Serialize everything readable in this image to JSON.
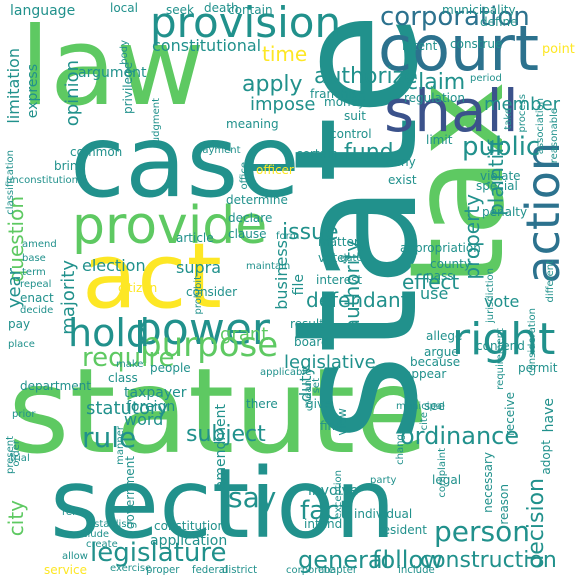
{
  "palette": [
    "#440154",
    "#3b528b",
    "#21918c",
    "#5ec962",
    "#fde725"
  ],
  "words": [
    {
      "text": "statute",
      "color": "#5ec962"
    },
    {
      "text": "section",
      "color": "#21918c"
    },
    {
      "text": "state",
      "color": "#21918c"
    },
    {
      "text": "law",
      "color": "#5ec962"
    },
    {
      "text": "case",
      "color": "#21918c"
    },
    {
      "text": "tax",
      "color": "#5ec962"
    },
    {
      "text": "act",
      "color": "#fde725"
    },
    {
      "text": "court",
      "color": "#2c728e"
    },
    {
      "text": "shall",
      "color": "#3b528b"
    },
    {
      "text": "provision",
      "color": "#21918c"
    },
    {
      "text": "provide",
      "color": "#5ec962"
    },
    {
      "text": "power",
      "color": "#21918c"
    },
    {
      "text": "right",
      "color": "#21918c"
    },
    {
      "text": "action",
      "color": "#2c728e"
    },
    {
      "text": "purpose",
      "color": "#5ec962"
    },
    {
      "text": "hold",
      "color": "#21918c"
    },
    {
      "text": "corporation",
      "color": "#2c728e"
    },
    {
      "text": "public",
      "color": "#21918c"
    },
    {
      "text": "legislature",
      "color": "#21918c"
    },
    {
      "text": "ordinance",
      "color": "#21918c"
    },
    {
      "text": "person",
      "color": "#21918c"
    },
    {
      "text": "general",
      "color": "#21918c"
    },
    {
      "text": "construction",
      "color": "#21918c"
    },
    {
      "text": "rule",
      "color": "#21918c"
    },
    {
      "text": "subject",
      "color": "#21918c"
    },
    {
      "text": "say",
      "color": "#21918c"
    },
    {
      "text": "fact",
      "color": "#21918c"
    },
    {
      "text": "follow",
      "color": "#21918c"
    },
    {
      "text": "require",
      "color": "#5ec962"
    },
    {
      "text": "apply",
      "color": "#21918c"
    },
    {
      "text": "claim",
      "color": "#21918c"
    },
    {
      "text": "member",
      "color": "#21918c"
    },
    {
      "text": "impose",
      "color": "#21918c"
    },
    {
      "text": "authorize",
      "color": "#21918c"
    },
    {
      "text": "time",
      "color": "#fde725"
    },
    {
      "text": "constitutional",
      "color": "#21918c"
    },
    {
      "text": "language",
      "color": "#21918c"
    },
    {
      "text": "opinion",
      "color": "#21918c"
    },
    {
      "text": "fund",
      "color": "#21918c"
    },
    {
      "text": "issue",
      "color": "#21918c"
    },
    {
      "text": "question",
      "color": "#5ec962"
    },
    {
      "text": "plaintiff",
      "color": "#21918c"
    },
    {
      "text": "property",
      "color": "#21918c"
    },
    {
      "text": "authority",
      "color": "#21918c"
    },
    {
      "text": "majority",
      "color": "#21918c"
    },
    {
      "text": "year",
      "color": "#21918c"
    },
    {
      "text": "effect",
      "color": "#21918c"
    },
    {
      "text": "defendant",
      "color": "#21918c"
    },
    {
      "text": "business",
      "color": "#21918c"
    },
    {
      "text": "supra",
      "color": "#21918c"
    },
    {
      "text": "legislative",
      "color": "#21918c"
    },
    {
      "text": "statutory",
      "color": "#21918c"
    },
    {
      "text": "word",
      "color": "#21918c"
    },
    {
      "text": "grant",
      "color": "#5ec962"
    },
    {
      "text": "use",
      "color": "#21918c"
    },
    {
      "text": "vote",
      "color": "#21918c"
    },
    {
      "text": "election",
      "color": "#21918c"
    },
    {
      "text": "city",
      "color": "#5ec962"
    },
    {
      "text": "decision",
      "color": "#21918c"
    },
    {
      "text": "duty",
      "color": "#21918c"
    },
    {
      "text": "amendment",
      "color": "#21918c"
    },
    {
      "text": "file",
      "color": "#21918c"
    },
    {
      "text": "involve",
      "color": "#21918c"
    },
    {
      "text": "taxpayer",
      "color": "#21918c"
    },
    {
      "text": "foreign",
      "color": "#21918c"
    },
    {
      "text": "point",
      "color": "#fde725"
    },
    {
      "text": "limitation",
      "color": "#21918c"
    },
    {
      "text": "express",
      "color": "#21918c"
    },
    {
      "text": "argument",
      "color": "#21918c"
    },
    {
      "text": "contain",
      "color": "#21918c"
    },
    {
      "text": "municipality",
      "color": "#21918c"
    },
    {
      "text": "local",
      "color": "#21918c"
    },
    {
      "text": "seek",
      "color": "#21918c"
    },
    {
      "text": "death",
      "color": "#21918c"
    },
    {
      "text": "body",
      "color": "#21918c"
    },
    {
      "text": "intent",
      "color": "#21918c"
    },
    {
      "text": "construe",
      "color": "#21918c"
    },
    {
      "text": "define",
      "color": "#21918c"
    },
    {
      "text": "franchise",
      "color": "#21918c"
    },
    {
      "text": "period",
      "color": "#21918c"
    },
    {
      "text": "regulation",
      "color": "#21918c"
    },
    {
      "text": "money",
      "color": "#21918c"
    },
    {
      "text": "suit",
      "color": "#21918c"
    },
    {
      "text": "control",
      "color": "#21918c"
    },
    {
      "text": "limit",
      "color": "#21918c"
    },
    {
      "text": "meaning",
      "color": "#21918c"
    },
    {
      "text": "judgment",
      "color": "#21918c"
    },
    {
      "text": "privilege",
      "color": "#21918c"
    },
    {
      "text": "common",
      "color": "#21918c"
    },
    {
      "text": "bring",
      "color": "#21918c"
    },
    {
      "text": "payment",
      "color": "#21918c"
    },
    {
      "text": "officer",
      "color": "#fde725"
    },
    {
      "text": "certain",
      "color": "#21918c"
    },
    {
      "text": "deny",
      "color": "#21918c"
    },
    {
      "text": "exist",
      "color": "#21918c"
    },
    {
      "text": "violate",
      "color": "#21918c"
    },
    {
      "text": "special",
      "color": "#21918c"
    },
    {
      "text": "penalty",
      "color": "#21918c"
    },
    {
      "text": "classification",
      "color": "#21918c"
    },
    {
      "text": "unconstitutional",
      "color": "#21918c"
    },
    {
      "text": "determine",
      "color": "#21918c"
    },
    {
      "text": "declare",
      "color": "#21918c"
    },
    {
      "text": "article",
      "color": "#21918c"
    },
    {
      "text": "clause",
      "color": "#21918c"
    },
    {
      "text": "appropriation",
      "color": "#21918c"
    },
    {
      "text": "county",
      "color": "#21918c"
    },
    {
      "text": "pass",
      "color": "#21918c"
    },
    {
      "text": "matter",
      "color": "#21918c"
    },
    {
      "text": "voter",
      "color": "#21918c"
    },
    {
      "text": "interest",
      "color": "#21918c"
    },
    {
      "text": "consider",
      "color": "#21918c"
    },
    {
      "text": "citizen",
      "color": "#fde725"
    },
    {
      "text": "amend",
      "color": "#21918c"
    },
    {
      "text": "base",
      "color": "#21918c"
    },
    {
      "text": "term",
      "color": "#21918c"
    },
    {
      "text": "repeal",
      "color": "#21918c"
    },
    {
      "text": "enact",
      "color": "#21918c"
    },
    {
      "text": "decide",
      "color": "#21918c"
    },
    {
      "text": "pay",
      "color": "#21918c"
    },
    {
      "text": "place",
      "color": "#21918c"
    },
    {
      "text": "result",
      "color": "#21918c"
    },
    {
      "text": "board",
      "color": "#21918c"
    },
    {
      "text": "allege",
      "color": "#21918c"
    },
    {
      "text": "argue",
      "color": "#21918c"
    },
    {
      "text": "contend",
      "color": "#21918c"
    },
    {
      "text": "because",
      "color": "#21918c"
    },
    {
      "text": "appear",
      "color": "#21918c"
    },
    {
      "text": "permit",
      "color": "#21918c"
    },
    {
      "text": "people",
      "color": "#21918c"
    },
    {
      "text": "make",
      "color": "#21918c"
    },
    {
      "text": "class",
      "color": "#21918c"
    },
    {
      "text": "there",
      "color": "#21918c"
    },
    {
      "text": "give",
      "color": "#21918c"
    },
    {
      "text": "find",
      "color": "#21918c"
    },
    {
      "text": "see",
      "color": "#21918c"
    },
    {
      "text": "cite",
      "color": "#21918c"
    },
    {
      "text": "legal",
      "color": "#21918c"
    },
    {
      "text": "party",
      "color": "#21918c"
    },
    {
      "text": "have",
      "color": "#21918c"
    },
    {
      "text": "adopt",
      "color": "#21918c"
    },
    {
      "text": "view",
      "color": "#21918c"
    },
    {
      "text": "individual",
      "color": "#21918c"
    },
    {
      "text": "intend",
      "color": "#21918c"
    },
    {
      "text": "resident",
      "color": "#21918c"
    },
    {
      "text": "complaint",
      "color": "#21918c"
    },
    {
      "text": "necessary",
      "color": "#21918c"
    },
    {
      "text": "reason",
      "color": "#21918c"
    },
    {
      "text": "department",
      "color": "#21918c"
    },
    {
      "text": "order",
      "color": "#21918c"
    },
    {
      "text": "present",
      "color": "#21918c"
    },
    {
      "text": "trial",
      "color": "#21918c"
    },
    {
      "text": "government",
      "color": "#21918c"
    },
    {
      "text": "constitution",
      "color": "#21918c"
    },
    {
      "text": "application",
      "color": "#21918c"
    },
    {
      "text": "establish",
      "color": "#21918c"
    },
    {
      "text": "create",
      "color": "#21918c"
    },
    {
      "text": "refer",
      "color": "#21918c"
    },
    {
      "text": "conclude",
      "color": "#21918c"
    },
    {
      "text": "allow",
      "color": "#21918c"
    },
    {
      "text": "service",
      "color": "#fde725"
    },
    {
      "text": "exercise",
      "color": "#21918c"
    },
    {
      "text": "proper",
      "color": "#21918c"
    },
    {
      "text": "federal",
      "color": "#21918c"
    },
    {
      "text": "district",
      "color": "#21918c"
    },
    {
      "text": "corporate",
      "color": "#21918c"
    },
    {
      "text": "chapter",
      "color": "#21918c"
    },
    {
      "text": "include",
      "color": "#21918c"
    },
    {
      "text": "receive",
      "color": "#21918c"
    },
    {
      "text": "jurisdiction",
      "color": "#21918c"
    },
    {
      "text": "requirement",
      "color": "#21918c"
    },
    {
      "text": "consideration",
      "color": "#21918c"
    },
    {
      "text": "different",
      "color": "#21918c"
    },
    {
      "text": "reasonable",
      "color": "#21918c"
    },
    {
      "text": "association",
      "color": "#21918c"
    },
    {
      "text": "process",
      "color": "#21918c"
    },
    {
      "text": "take",
      "color": "#21918c"
    },
    {
      "text": "office",
      "color": "#21918c"
    },
    {
      "text": "prohibit",
      "color": "#21918c"
    },
    {
      "text": "maintain",
      "color": "#21918c"
    },
    {
      "text": "form",
      "color": "#21918c"
    },
    {
      "text": "date",
      "color": "#21918c"
    },
    {
      "text": "set",
      "color": "#21918c"
    },
    {
      "text": "mean",
      "color": "#21918c"
    },
    {
      "text": "municipal",
      "color": "#21918c"
    },
    {
      "text": "change",
      "color": "#21918c"
    },
    {
      "text": "exception",
      "color": "#21918c"
    },
    {
      "text": "prior",
      "color": "#21918c"
    },
    {
      "text": "manner",
      "color": "#21918c"
    },
    {
      "text": "applicable",
      "color": "#21918c"
    },
    {
      "text": "concern",
      "color": "#21918c"
    }
  ]
}
